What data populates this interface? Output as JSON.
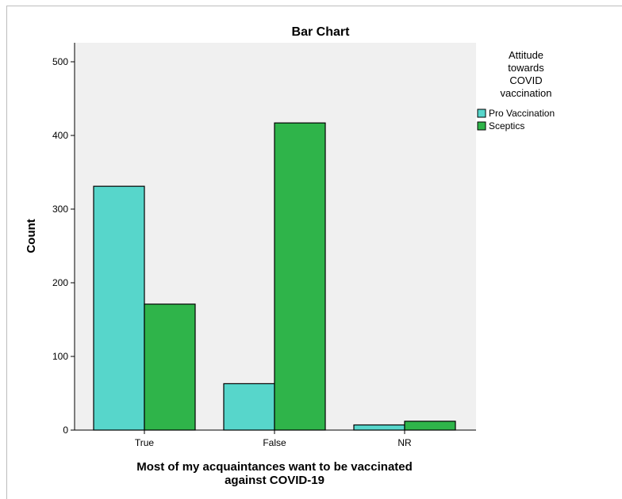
{
  "chart_data": {
    "type": "bar",
    "title": "Bar Chart",
    "xlabel": "Most of my acquaintances want to be vaccinated against COVID-19",
    "xlabel_lines": [
      "Most of my acquaintances want to be vaccinated",
      "against COVID-19"
    ],
    "ylabel": "Count",
    "categories": [
      "True",
      "False",
      "NR"
    ],
    "series": [
      {
        "name": "Pro Vaccination",
        "values": [
          331,
          63,
          7
        ]
      },
      {
        "name": "Sceptics",
        "values": [
          171,
          417,
          12
        ]
      }
    ],
    "ylim": [
      0,
      520
    ],
    "yticks": [
      0,
      100,
      200,
      300,
      400,
      500
    ],
    "legend": {
      "title_lines": [
        "Attitude",
        "towards",
        "COVID",
        "vaccination"
      ],
      "position": "right"
    },
    "grid": false,
    "colors": {
      "Pro Vaccination": "#57d6cb",
      "Sceptics": "#2fb44a",
      "plot_background": "#f0f0f0"
    }
  }
}
